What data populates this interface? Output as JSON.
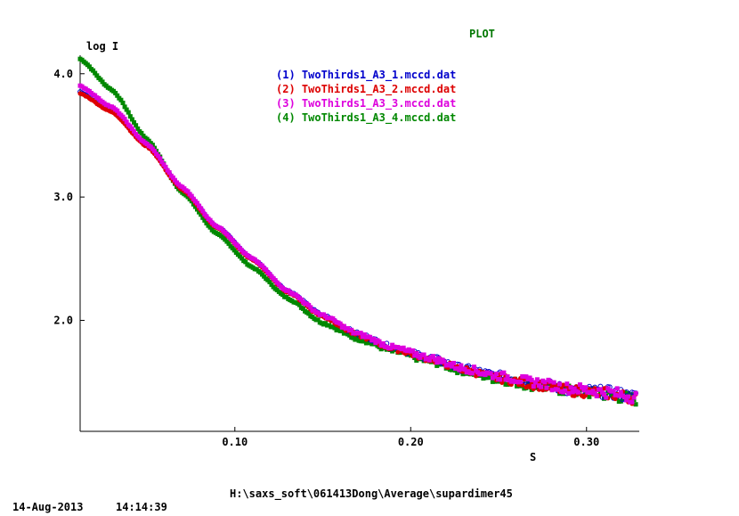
{
  "header": {
    "title": "PLOT"
  },
  "footer": {
    "date": "14-Aug-2013",
    "time": "14:14:39",
    "path": "H:\\saxs_soft\\061413Dong\\Average\\supardimer45"
  },
  "colors": {
    "axis": "#000000",
    "title": "#007700"
  },
  "chart_data": {
    "type": "scatter",
    "xlabel": "S",
    "ylabel": "log I",
    "xlim": [
      0.012,
      0.33
    ],
    "ylim": [
      1.1,
      4.15
    ],
    "x_ticks": [
      {
        "value": 0.1,
        "label": "0.10"
      },
      {
        "value": 0.2,
        "label": "0.20"
      },
      {
        "value": 0.3,
        "label": "0.30"
      }
    ],
    "y_ticks": [
      {
        "value": 2.0,
        "label": "2.0"
      },
      {
        "value": 3.0,
        "label": "3.0"
      },
      {
        "value": 4.0,
        "label": "4.0"
      }
    ],
    "legend_position": "top",
    "series": [
      {
        "name": "(1) TwoThirds1_A3_1.mccd.dat",
        "color": "#0000cc",
        "marker": "open-circle",
        "x": [
          0.012,
          0.03,
          0.05,
          0.07,
          0.09,
          0.11,
          0.13,
          0.15,
          0.17,
          0.19,
          0.21,
          0.23,
          0.25,
          0.27,
          0.29,
          0.31,
          0.328
        ],
        "y": [
          3.85,
          3.7,
          3.42,
          3.07,
          2.76,
          2.5,
          2.24,
          2.04,
          1.89,
          1.78,
          1.7,
          1.61,
          1.55,
          1.5,
          1.44,
          1.42,
          1.38
        ]
      },
      {
        "name": "(2) TwoThirds1_A3_2.mccd.dat",
        "color": "#dd0000",
        "marker": "filled-circle",
        "x": [
          0.012,
          0.03,
          0.05,
          0.07,
          0.09,
          0.11,
          0.13,
          0.15,
          0.17,
          0.19,
          0.21,
          0.23,
          0.25,
          0.27,
          0.29,
          0.31,
          0.328
        ],
        "y": [
          3.84,
          3.69,
          3.41,
          3.06,
          2.75,
          2.49,
          2.23,
          2.03,
          1.88,
          1.77,
          1.69,
          1.6,
          1.53,
          1.48,
          1.43,
          1.41,
          1.37
        ]
      },
      {
        "name": "(3) TwoThirds1_A3_3.mccd.dat",
        "color": "#dd00dd",
        "marker": "filled-square",
        "x": [
          0.012,
          0.03,
          0.05,
          0.07,
          0.09,
          0.11,
          0.13,
          0.15,
          0.17,
          0.19,
          0.21,
          0.23,
          0.25,
          0.27,
          0.29,
          0.31,
          0.328
        ],
        "y": [
          3.9,
          3.73,
          3.43,
          3.08,
          2.76,
          2.5,
          2.24,
          2.04,
          1.89,
          1.78,
          1.7,
          1.61,
          1.55,
          1.5,
          1.45,
          1.42,
          1.38
        ]
      },
      {
        "name": "(4) TwoThirds1_A3_4.mccd.dat",
        "color": "#008800",
        "marker": "filled-square",
        "x": [
          0.012,
          0.03,
          0.05,
          0.07,
          0.09,
          0.11,
          0.13,
          0.15,
          0.17,
          0.19,
          0.21,
          0.23,
          0.25,
          0.27,
          0.29,
          0.31,
          0.328
        ],
        "y": [
          4.12,
          3.87,
          3.47,
          3.04,
          2.7,
          2.43,
          2.18,
          1.98,
          1.85,
          1.75,
          1.67,
          1.59,
          1.52,
          1.47,
          1.43,
          1.4,
          1.36
        ]
      }
    ]
  }
}
